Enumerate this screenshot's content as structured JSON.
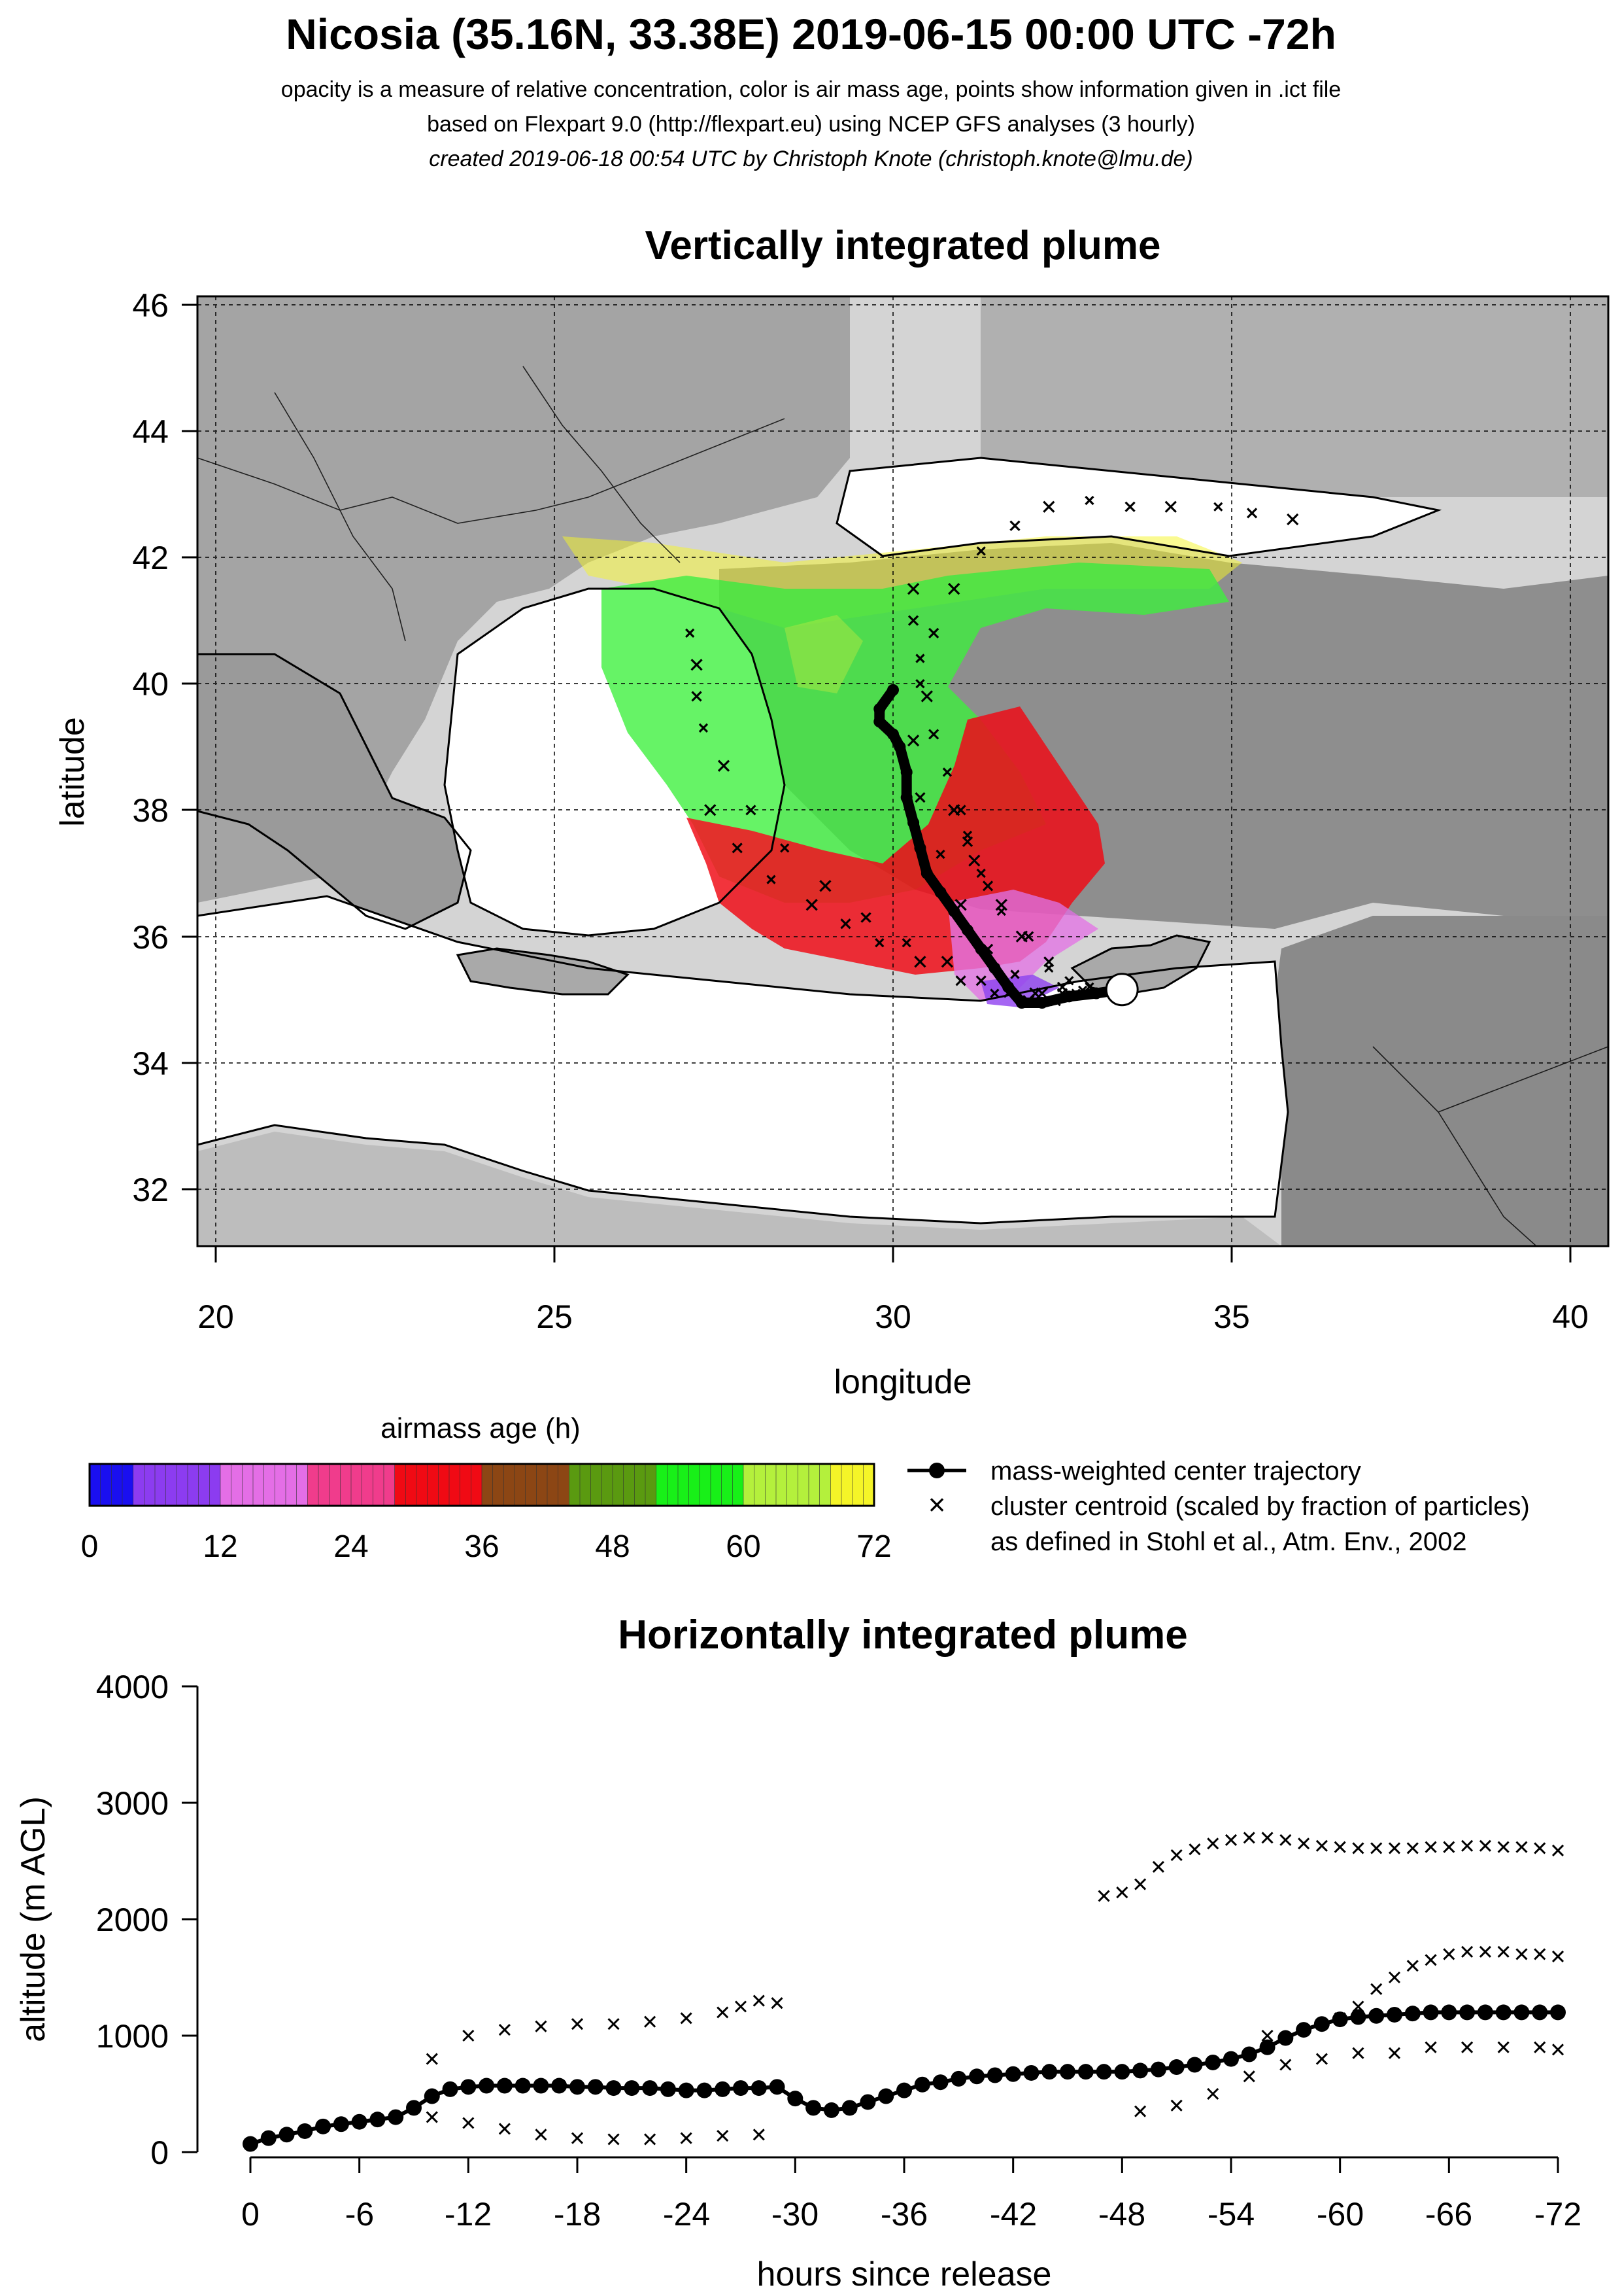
{
  "header": {
    "title": "Nicosia (35.16N, 33.38E) 2019-06-15 00:00 UTC -72h",
    "line1": "opacity is a measure of relative concentration, color is air mass age, points show information given in .ict file",
    "line2": "based on Flexpart 9.0 (http://flexpart.eu) using NCEP GFS analyses (3 hourly)",
    "line3": "created 2019-06-18 00:54 UTC by Christoph Knote (christoph.knote@lmu.de)"
  },
  "colors": {
    "age_scale": [
      "#1a0ff0",
      "#8c3cf0",
      "#e46ee6",
      "#f03c8c",
      "#f00a14",
      "#8c4614",
      "#5a9a10",
      "#18f018",
      "#b4f03c",
      "#f5f528"
    ],
    "land": "#9d9d9d",
    "trajectory": "#000000"
  },
  "map": {
    "title": "Vertically integrated plume",
    "xlabel": "longitude",
    "ylabel": "latitude",
    "xticks": [
      "20",
      "25",
      "30",
      "35",
      "40"
    ],
    "yticks": [
      "32",
      "34",
      "36",
      "38",
      "40",
      "42",
      "44",
      "46"
    ]
  },
  "legend": {
    "colorbar_title": "airmass age (h)",
    "colorbar_ticks": [
      "0",
      "12",
      "24",
      "36",
      "48",
      "60",
      "72"
    ],
    "line_label": "mass-weighted center trajectory",
    "cross_label": "cluster centroid (scaled by fraction of particles)",
    "cross_label2": "as defined in Stohl et al., Atm. Env., 2002"
  },
  "profile": {
    "title": "Horizontally integrated plume",
    "xlabel": "hours since release",
    "ylabel": "altitude (m AGL)",
    "xticks": [
      "0",
      "-6",
      "-12",
      "-18",
      "-24",
      "-30",
      "-36",
      "-42",
      "-48",
      "-54",
      "-60",
      "-66",
      "-72"
    ],
    "yticks": [
      "0",
      "1000",
      "2000",
      "3000",
      "4000"
    ]
  },
  "chart_data": [
    {
      "type": "scatter",
      "title": "Vertically integrated plume",
      "xlabel": "longitude",
      "ylabel": "latitude",
      "xlim": [
        19.7,
        40.6
      ],
      "ylim": [
        31.0,
        46.1
      ],
      "release_point": {
        "lon": 33.38,
        "lat": 35.16
      },
      "series": [
        {
          "name": "mass-weighted center trajectory",
          "x": [
            33.38,
            33.0,
            32.6,
            32.2,
            31.9,
            31.7,
            31.5,
            31.3,
            31.1,
            30.9,
            30.7,
            30.5,
            30.4,
            30.3,
            30.2,
            30.2,
            30.1,
            30.0,
            29.8,
            29.8,
            30.0
          ],
          "y": [
            35.16,
            35.1,
            35.05,
            34.95,
            34.95,
            35.2,
            35.5,
            35.8,
            36.1,
            36.4,
            36.7,
            37.0,
            37.4,
            37.8,
            38.2,
            38.6,
            39.0,
            39.2,
            39.4,
            39.6,
            39.9
          ]
        },
        {
          "name": "cluster centroid (scaled by fraction of particles)",
          "tracks": [
            {
              "x": [
                32.8,
                32.5,
                32.2,
                31.8,
                31.4,
                31.0,
                30.7,
                30.4,
                30.3,
                30.4,
                30.6,
                30.9,
                31.3,
                31.8,
                32.3,
                32.9,
                33.5,
                34.1,
                34.8,
                35.3,
                35.9
              ],
              "y": [
                35.15,
                35.1,
                35.1,
                35.4,
                35.8,
                36.5,
                37.3,
                38.2,
                39.1,
                40.0,
                40.8,
                41.5,
                42.1,
                42.5,
                42.8,
                42.9,
                42.8,
                42.8,
                42.8,
                42.7,
                42.6
              ]
            },
            {
              "x": [
                32.9,
                32.5,
                32.1,
                31.7,
                31.3,
                30.8,
                30.2,
                29.6,
                29.0,
                28.4,
                27.9,
                27.5,
                27.2,
                27.1,
                27.1,
                27.0
              ],
              "y": [
                35.2,
                35.2,
                35.1,
                35.1,
                35.3,
                35.6,
                35.9,
                36.3,
                36.8,
                37.4,
                38.0,
                38.7,
                39.3,
                39.8,
                40.3,
                40.8
              ]
            },
            {
              "x": [
                32.7,
                32.4,
                32.0,
                31.5,
                31.0,
                30.4,
                29.8,
                29.3,
                28.8,
                28.2,
                27.7,
                27.3
              ],
              "y": [
                35.1,
                34.98,
                34.98,
                35.1,
                35.3,
                35.6,
                35.9,
                36.2,
                36.5,
                36.9,
                37.4,
                38.0
              ]
            },
            {
              "x": [
                32.6,
                32.3,
                31.9,
                31.6,
                31.4,
                31.2,
                31.1,
                31.0
              ],
              "y": [
                35.3,
                35.6,
                36.0,
                36.4,
                36.8,
                37.2,
                37.6,
                38.0
              ]
            },
            {
              "x": [
                32.3,
                32.0,
                31.6,
                31.3,
                31.1,
                30.9,
                30.8,
                30.6,
                30.5,
                30.4,
                30.3,
                30.3
              ],
              "y": [
                35.5,
                36.0,
                36.5,
                37.0,
                37.5,
                38.0,
                38.6,
                39.2,
                39.8,
                40.4,
                41.0,
                41.5
              ]
            }
          ]
        }
      ]
    },
    {
      "type": "line",
      "title": "Horizontally integrated plume",
      "xlabel": "hours since release",
      "ylabel": "altitude (m AGL)",
      "xlim": [
        0,
        -72
      ],
      "ylim": [
        0,
        4000
      ],
      "series": [
        {
          "name": "mass-weighted center trajectory",
          "x": [
            0,
            -1,
            -2,
            -3,
            -4,
            -5,
            -6,
            -7,
            -8,
            -9,
            -10,
            -11,
            -12,
            -13,
            -14,
            -15,
            -16,
            -17,
            -18,
            -19,
            -20,
            -21,
            -22,
            -23,
            -24,
            -25,
            -26,
            -27,
            -28,
            -29,
            -30,
            -31,
            -32,
            -33,
            -34,
            -35,
            -36,
            -37,
            -38,
            -39,
            -40,
            -41,
            -42,
            -43,
            -44,
            -45,
            -46,
            -47,
            -48,
            -49,
            -50,
            -51,
            -52,
            -53,
            -54,
            -55,
            -56,
            -57,
            -58,
            -59,
            -60,
            -61,
            -62,
            -63,
            -64,
            -65,
            -66,
            -67,
            -68,
            -69,
            -70,
            -71,
            -72
          ],
          "y": [
            70,
            120,
            150,
            180,
            220,
            240,
            260,
            280,
            300,
            380,
            480,
            540,
            560,
            570,
            570,
            570,
            570,
            570,
            560,
            560,
            550,
            550,
            550,
            540,
            530,
            530,
            540,
            550,
            550,
            560,
            460,
            380,
            360,
            380,
            430,
            480,
            530,
            580,
            600,
            630,
            650,
            660,
            670,
            680,
            690,
            690,
            690,
            690,
            690,
            700,
            710,
            730,
            750,
            770,
            800,
            840,
            900,
            980,
            1050,
            1100,
            1140,
            1160,
            1170,
            1180,
            1190,
            1200,
            1200,
            1200,
            1200,
            1200,
            1200,
            1200,
            1200
          ]
        },
        {
          "name": "cluster centroid (scaled by fraction of particles)",
          "tracks": [
            {
              "x": [
                -47,
                -48,
                -49,
                -50,
                -51,
                -52,
                -53,
                -54,
                -55,
                -56,
                -57,
                -58,
                -59,
                -60,
                -61,
                -62,
                -63,
                -64,
                -65,
                -66,
                -67,
                -68,
                -69,
                -70,
                -71,
                -72
              ],
              "y": [
                2200,
                2230,
                2300,
                2450,
                2550,
                2600,
                2650,
                2680,
                2700,
                2700,
                2680,
                2650,
                2630,
                2620,
                2610,
                2610,
                2610,
                2610,
                2620,
                2620,
                2630,
                2630,
                2620,
                2620,
                2610,
                2590
              ]
            },
            {
              "x": [
                -10,
                -12,
                -14,
                -16,
                -18,
                -20,
                -22,
                -24,
                -26,
                -27,
                -28,
                -29
              ],
              "y": [
                800,
                1000,
                1050,
                1080,
                1100,
                1100,
                1120,
                1150,
                1200,
                1250,
                1300,
                1280
              ]
            },
            {
              "x": [
                -56,
                -58,
                -60,
                -61,
                -62,
                -63,
                -64,
                -65,
                -66,
                -67,
                -68,
                -69,
                -70,
                -71,
                -72
              ],
              "y": [
                1000,
                1050,
                1150,
                1250,
                1400,
                1500,
                1600,
                1650,
                1700,
                1720,
                1720,
                1720,
                1700,
                1700,
                1680
              ]
            },
            {
              "x": [
                -10,
                -12,
                -14,
                -16,
                -18,
                -20,
                -22,
                -24,
                -26,
                -28
              ],
              "y": [
                300,
                250,
                200,
                150,
                120,
                110,
                110,
                120,
                140,
                150
              ]
            },
            {
              "x": [
                -49,
                -51,
                -53,
                -55,
                -57,
                -59,
                -61,
                -63,
                -65,
                -67,
                -69,
                -71,
                -72
              ],
              "y": [
                350,
                400,
                500,
                650,
                750,
                800,
                850,
                850,
                900,
                900,
                900,
                900,
                880
              ]
            }
          ]
        }
      ]
    }
  ]
}
